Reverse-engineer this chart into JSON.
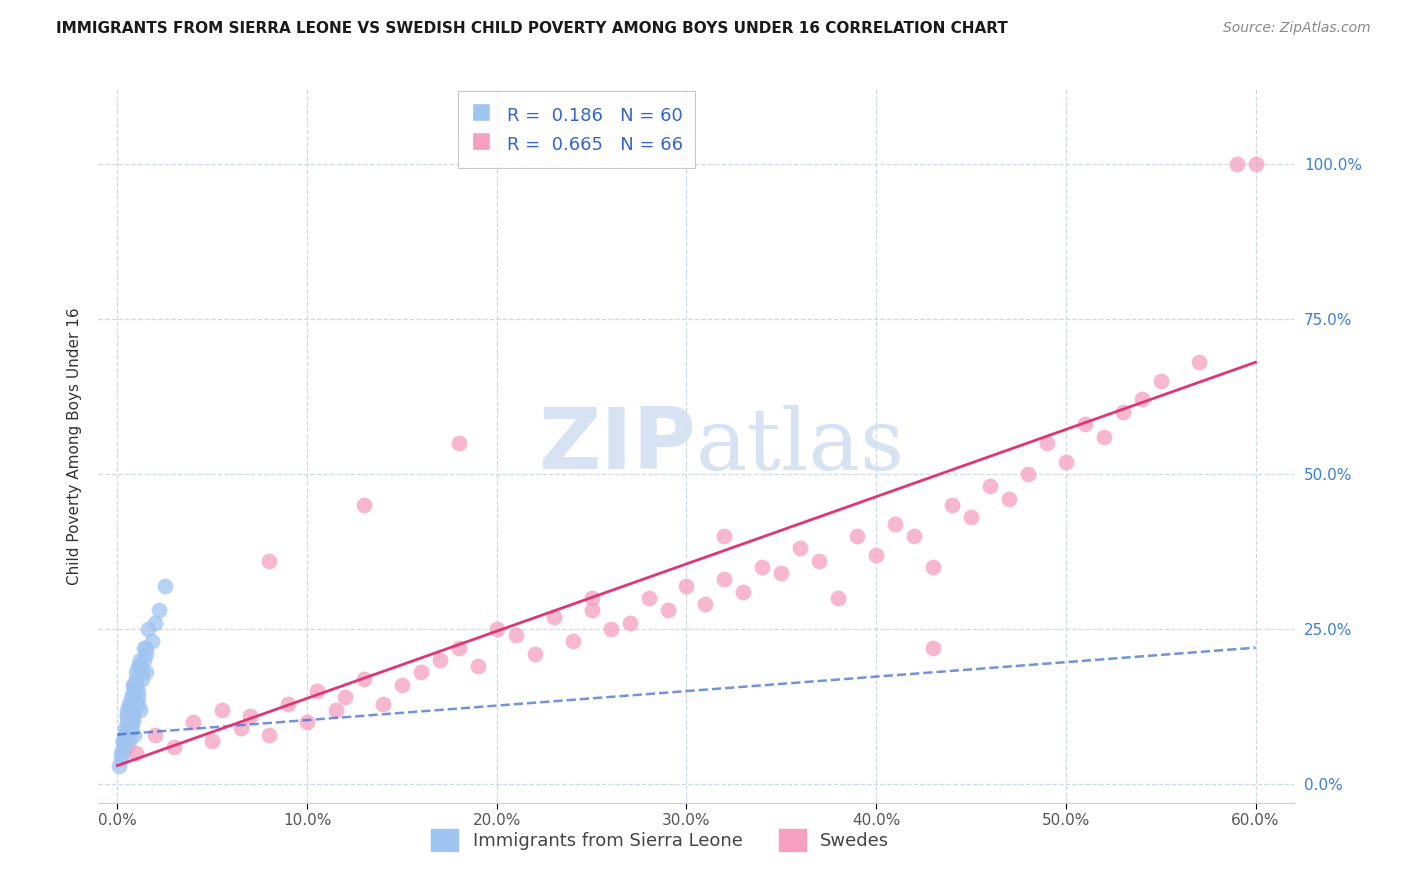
{
  "title": "IMMIGRANTS FROM SIERRA LEONE VS SWEDISH CHILD POVERTY AMONG BOYS UNDER 16 CORRELATION CHART",
  "source": "Source: ZipAtlas.com",
  "ylabel": "Child Poverty Among Boys Under 16",
  "x_tick_labels": [
    "0.0%",
    "",
    "10.0%",
    "",
    "20.0%",
    "",
    "30.0%",
    "",
    "40.0%",
    "",
    "50.0%",
    "",
    "60.0%"
  ],
  "x_tick_values": [
    0,
    5,
    10,
    15,
    20,
    25,
    30,
    35,
    40,
    45,
    50,
    55,
    60
  ],
  "x_label_ticks": [
    0,
    10,
    20,
    30,
    40,
    50,
    60
  ],
  "x_label_texts": [
    "0.0%",
    "10.0%",
    "20.0%",
    "30.0%",
    "40.0%",
    "50.0%",
    "60.0%"
  ],
  "y_tick_labels": [
    "0.0%",
    "25.0%",
    "50.0%",
    "75.0%",
    "100.0%"
  ],
  "y_tick_values": [
    0,
    25,
    50,
    75,
    100
  ],
  "xlim": [
    -1,
    62
  ],
  "ylim": [
    -3,
    112
  ],
  "blue_R": "0.186",
  "blue_N": "60",
  "pink_R": "0.665",
  "pink_N": "66",
  "blue_dot_color": "#a0c4f0",
  "pink_dot_color": "#f5a0c0",
  "blue_trend_color": "#3366cc",
  "pink_trend_color": "#e03575",
  "grid_color": "#d0d8e8",
  "watermark_color": "#d0dff0",
  "legend_label_blue": "Immigrants from Sierra Leone",
  "legend_label_pink": "Swedes",
  "blue_scatter_x": [
    0.1,
    0.2,
    0.3,
    0.4,
    0.5,
    0.5,
    0.6,
    0.7,
    0.7,
    0.8,
    0.8,
    0.9,
    1.0,
    1.0,
    1.1,
    1.2,
    1.3,
    1.4,
    1.5,
    1.6,
    0.3,
    0.4,
    0.5,
    0.6,
    0.7,
    0.8,
    0.9,
    1.0,
    1.1,
    1.2,
    0.2,
    0.3,
    0.4,
    0.5,
    0.6,
    0.7,
    0.8,
    1.0,
    1.2,
    1.5,
    1.8,
    2.2,
    2.5,
    0.3,
    0.5,
    0.6,
    0.7,
    0.8,
    0.9,
    1.0,
    1.1,
    1.3,
    1.5,
    2.0,
    0.4,
    0.5,
    0.7,
    0.9,
    1.1,
    1.4
  ],
  "blue_scatter_y": [
    3,
    5,
    7,
    8,
    10,
    6,
    12,
    9,
    14,
    11,
    16,
    8,
    13,
    18,
    15,
    12,
    17,
    20,
    22,
    25,
    6,
    8,
    11,
    13,
    10,
    15,
    12,
    17,
    14,
    19,
    4,
    7,
    9,
    12,
    8,
    11,
    14,
    16,
    20,
    18,
    23,
    28,
    32,
    5,
    9,
    7,
    12,
    10,
    14,
    16,
    13,
    18,
    21,
    26,
    8,
    11,
    13,
    16,
    19,
    22
  ],
  "pink_scatter_x": [
    1.0,
    2.0,
    3.0,
    4.0,
    5.0,
    5.5,
    6.5,
    7.0,
    8.0,
    9.0,
    10.0,
    10.5,
    11.5,
    12.0,
    13.0,
    14.0,
    15.0,
    16.0,
    17.0,
    18.0,
    19.0,
    20.0,
    21.0,
    22.0,
    23.0,
    24.0,
    25.0,
    26.0,
    27.0,
    28.0,
    29.0,
    30.0,
    31.0,
    32.0,
    33.0,
    34.0,
    35.0,
    36.0,
    37.0,
    38.0,
    39.0,
    40.0,
    41.0,
    42.0,
    43.0,
    44.0,
    45.0,
    46.0,
    47.0,
    48.0,
    49.0,
    50.0,
    51.0,
    52.0,
    53.0,
    54.0,
    55.0,
    57.0,
    59.0,
    60.0,
    8.0,
    13.0,
    18.0,
    25.0,
    32.0,
    43.0
  ],
  "pink_scatter_y": [
    5,
    8,
    6,
    10,
    7,
    12,
    9,
    11,
    8,
    13,
    10,
    15,
    12,
    14,
    17,
    13,
    16,
    18,
    20,
    22,
    19,
    25,
    24,
    21,
    27,
    23,
    28,
    25,
    26,
    30,
    28,
    32,
    29,
    33,
    31,
    35,
    34,
    38,
    36,
    30,
    40,
    37,
    42,
    40,
    35,
    45,
    43,
    48,
    46,
    50,
    55,
    52,
    58,
    56,
    60,
    62,
    65,
    68,
    100,
    100,
    36,
    45,
    55,
    30,
    40,
    22
  ],
  "blue_trend": [
    0,
    60,
    8.0,
    22.0
  ],
  "pink_trend": [
    0,
    60,
    3.0,
    68.0
  ],
  "title_fontsize": 11,
  "axis_label_fontsize": 11,
  "tick_fontsize": 11,
  "legend_fontsize": 13
}
